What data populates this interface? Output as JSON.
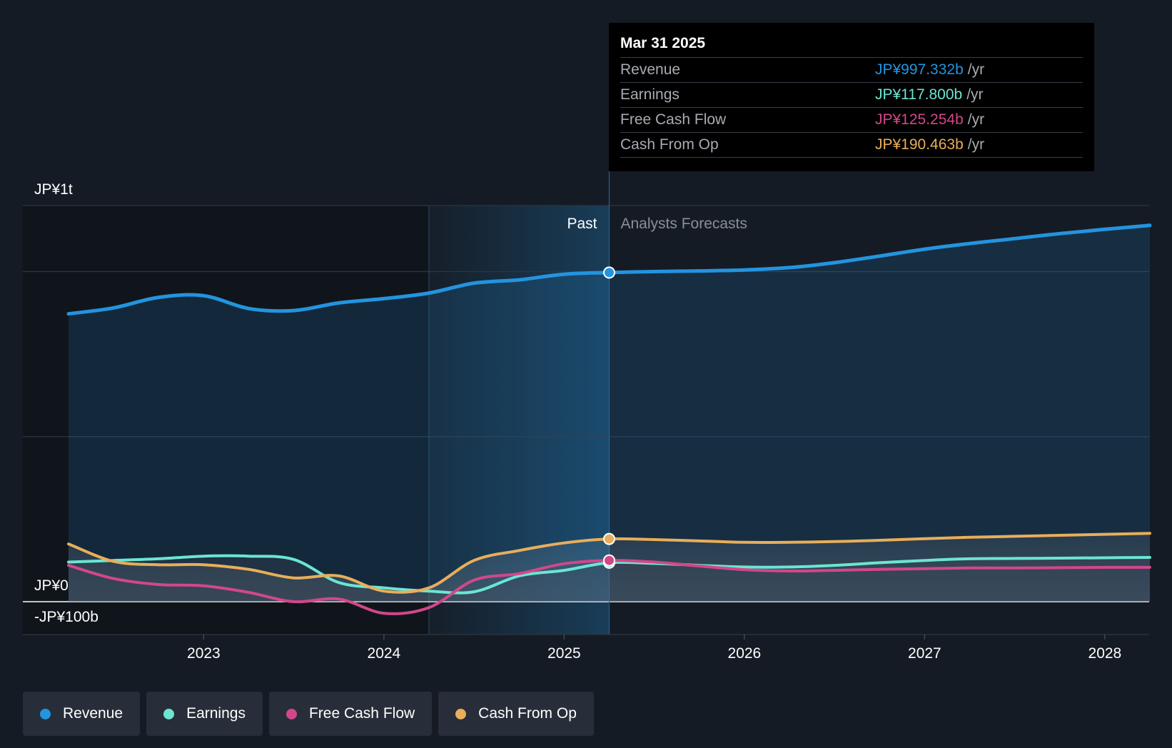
{
  "colors": {
    "revenue": "#2394df",
    "earnings": "#6ce5d3",
    "free_cash_flow": "#d2478a",
    "cash_from_op": "#e8ae5b",
    "background": "#151b24"
  },
  "labels": {
    "past": "Past",
    "forecasts": "Analysts Forecasts"
  },
  "tooltip": {
    "date": "Mar 31 2025",
    "rows": [
      {
        "label": "Revenue",
        "value": "JP¥997.332b",
        "unit": "/yr",
        "color": "#2394df"
      },
      {
        "label": "Earnings",
        "value": "JP¥117.800b",
        "unit": "/yr",
        "color": "#6ce5d3"
      },
      {
        "label": "Free Cash Flow",
        "value": "JP¥125.254b",
        "unit": "/yr",
        "color": "#d2478a"
      },
      {
        "label": "Cash From Op",
        "value": "JP¥190.463b",
        "unit": "/yr",
        "color": "#e8ae5b"
      }
    ]
  },
  "legend": [
    {
      "label": "Revenue",
      "color": "#2394df"
    },
    {
      "label": "Earnings",
      "color": "#6ce5d3"
    },
    {
      "label": "Free Cash Flow",
      "color": "#d2478a"
    },
    {
      "label": "Cash From Op",
      "color": "#e8ae5b"
    }
  ],
  "chart_data": {
    "type": "line",
    "x_unit": "year",
    "y_unit": "JP¥ billions",
    "ylim": [
      -100,
      1200
    ],
    "xlim": [
      2022.25,
      2028.25
    ],
    "y_tick_labels": [
      {
        "value": 1200,
        "label": "JP¥1t"
      },
      {
        "value": 0,
        "label": "JP¥0"
      },
      {
        "value": -100,
        "label": "-JP¥100b"
      }
    ],
    "x_ticks": [
      {
        "value": 2023,
        "label": "2023"
      },
      {
        "value": 2024,
        "label": "2024"
      },
      {
        "value": 2025,
        "label": "2025"
      },
      {
        "value": 2026,
        "label": "2026"
      },
      {
        "value": 2027,
        "label": "2027"
      },
      {
        "value": 2028,
        "label": "2028"
      }
    ],
    "gridlines": [
      1200,
      1000,
      500
    ],
    "past_region_start": 2024.25,
    "divider": 2025.25,
    "grid": true,
    "legend_position": "bottom",
    "series": [
      {
        "name": "Revenue",
        "color": "#2394df",
        "area": true,
        "points": [
          [
            2022.25,
            872
          ],
          [
            2022.5,
            890
          ],
          [
            2022.75,
            922
          ],
          [
            2023,
            927
          ],
          [
            2023.25,
            888
          ],
          [
            2023.5,
            882
          ],
          [
            2023.75,
            905
          ],
          [
            2024,
            918
          ],
          [
            2024.25,
            935
          ],
          [
            2024.5,
            965
          ],
          [
            2024.75,
            975
          ],
          [
            2025,
            992
          ],
          [
            2025.25,
            997
          ],
          [
            2025.5,
            1000
          ],
          [
            2025.75,
            1002
          ],
          [
            2026,
            1005
          ],
          [
            2026.25,
            1012
          ],
          [
            2026.5,
            1027
          ],
          [
            2026.75,
            1047
          ],
          [
            2027,
            1068
          ],
          [
            2027.25,
            1085
          ],
          [
            2027.5,
            1100
          ],
          [
            2027.75,
            1115
          ],
          [
            2028,
            1128
          ],
          [
            2028.25,
            1140
          ]
        ]
      },
      {
        "name": "Earnings",
        "color": "#6ce5d3",
        "points": [
          [
            2022.25,
            120
          ],
          [
            2022.5,
            125
          ],
          [
            2022.75,
            130
          ],
          [
            2023,
            138
          ],
          [
            2023.25,
            138
          ],
          [
            2023.5,
            128
          ],
          [
            2023.75,
            58
          ],
          [
            2024,
            42
          ],
          [
            2024.25,
            32
          ],
          [
            2024.5,
            30
          ],
          [
            2024.75,
            78
          ],
          [
            2025,
            95
          ],
          [
            2025.25,
            118
          ],
          [
            2025.5,
            116
          ],
          [
            2025.75,
            110
          ],
          [
            2026,
            105
          ],
          [
            2026.25,
            105
          ],
          [
            2026.5,
            110
          ],
          [
            2026.75,
            118
          ],
          [
            2027,
            125
          ],
          [
            2027.25,
            130
          ],
          [
            2027.5,
            131
          ],
          [
            2027.75,
            132
          ],
          [
            2028,
            133
          ],
          [
            2028.25,
            134
          ]
        ]
      },
      {
        "name": "Free Cash Flow",
        "color": "#d2478a",
        "points": [
          [
            2022.25,
            110
          ],
          [
            2022.5,
            70
          ],
          [
            2022.75,
            52
          ],
          [
            2023,
            48
          ],
          [
            2023.25,
            28
          ],
          [
            2023.5,
            0
          ],
          [
            2023.75,
            8
          ],
          [
            2024,
            -35
          ],
          [
            2024.25,
            -18
          ],
          [
            2024.5,
            65
          ],
          [
            2024.75,
            85
          ],
          [
            2025,
            115
          ],
          [
            2025.25,
            125
          ],
          [
            2025.5,
            120
          ],
          [
            2025.75,
            108
          ],
          [
            2026,
            97
          ],
          [
            2026.25,
            93
          ],
          [
            2026.5,
            95
          ],
          [
            2026.75,
            98
          ],
          [
            2027,
            100
          ],
          [
            2027.25,
            102
          ],
          [
            2027.5,
            102
          ],
          [
            2027.75,
            103
          ],
          [
            2028,
            104
          ],
          [
            2028.25,
            104
          ]
        ]
      },
      {
        "name": "Cash From Op",
        "color": "#e8ae5b",
        "points": [
          [
            2022.25,
            175
          ],
          [
            2022.5,
            122
          ],
          [
            2022.75,
            112
          ],
          [
            2023,
            112
          ],
          [
            2023.25,
            98
          ],
          [
            2023.5,
            72
          ],
          [
            2023.75,
            78
          ],
          [
            2024,
            32
          ],
          [
            2024.25,
            42
          ],
          [
            2024.5,
            125
          ],
          [
            2024.75,
            155
          ],
          [
            2025,
            178
          ],
          [
            2025.25,
            190
          ],
          [
            2025.5,
            188
          ],
          [
            2025.75,
            184
          ],
          [
            2026,
            180
          ],
          [
            2026.25,
            180
          ],
          [
            2026.5,
            182
          ],
          [
            2026.75,
            186
          ],
          [
            2027,
            191
          ],
          [
            2027.25,
            195
          ],
          [
            2027.5,
            198
          ],
          [
            2027.75,
            201
          ],
          [
            2028,
            204
          ],
          [
            2028.25,
            207
          ]
        ]
      }
    ],
    "highlight_x": 2025.25
  }
}
